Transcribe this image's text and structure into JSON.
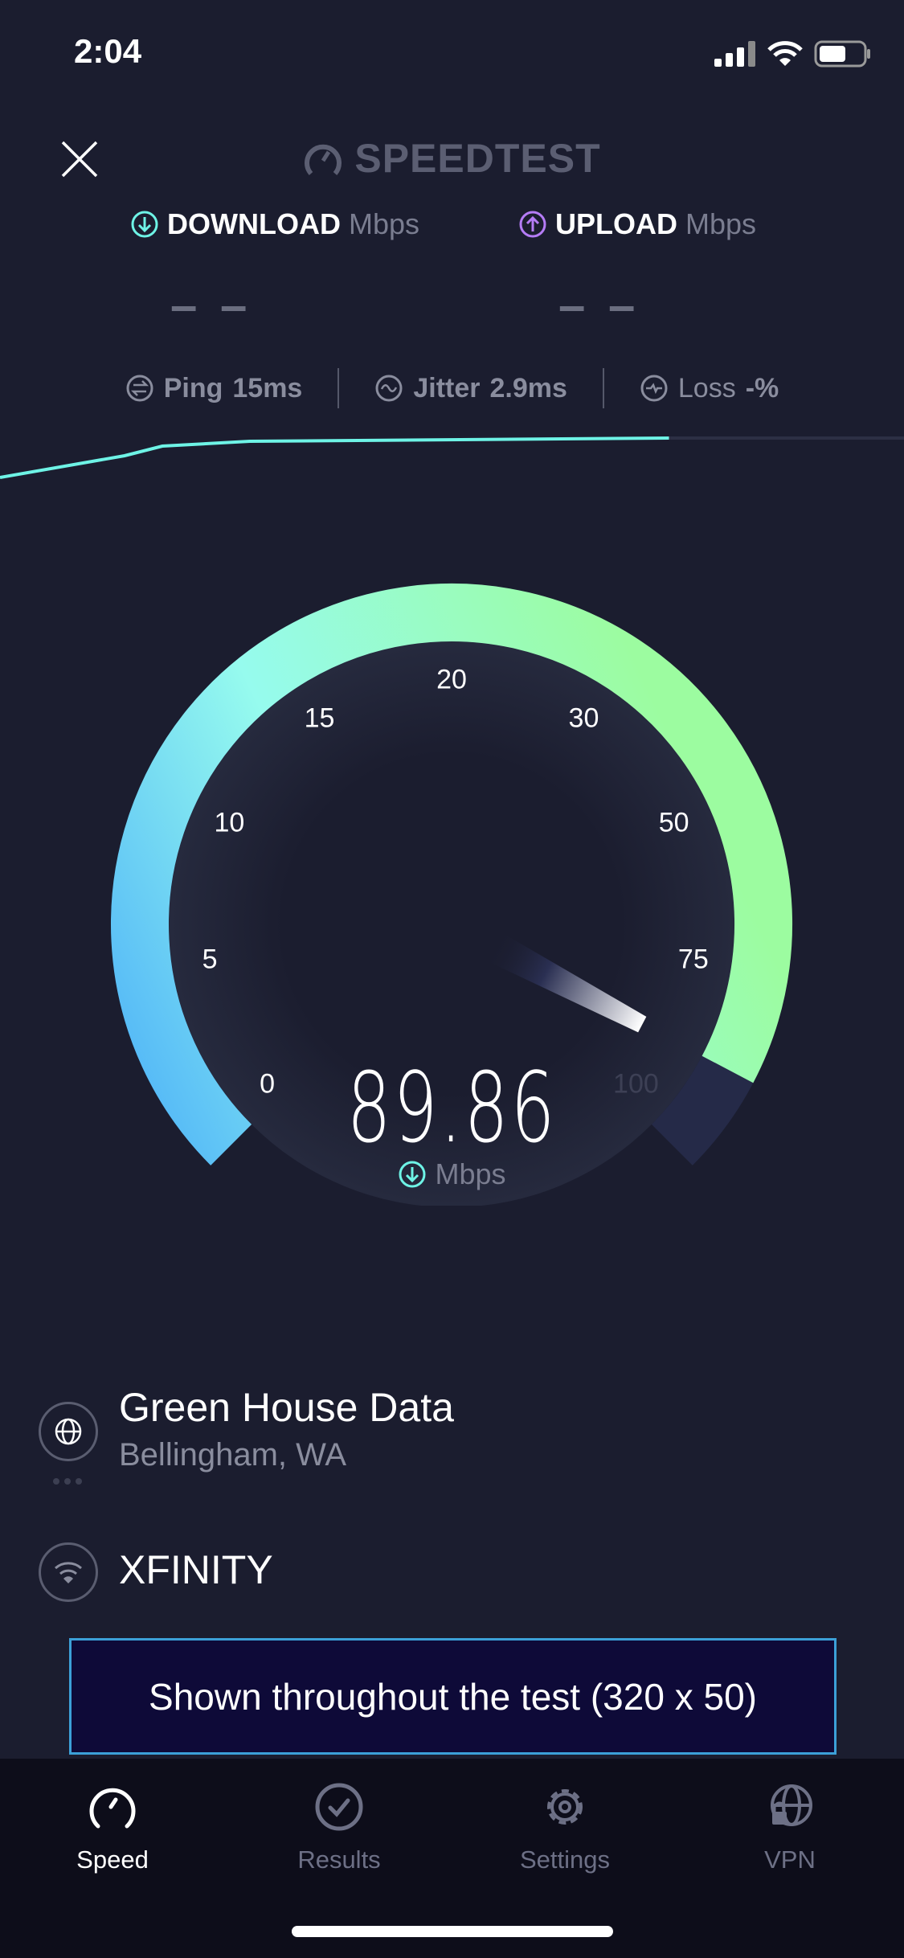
{
  "status_bar": {
    "time": "2:04"
  },
  "header": {
    "logo_text": "SPEEDTEST"
  },
  "download": {
    "label": "DOWNLOAD",
    "unit": "Mbps",
    "value": "– –",
    "accent": "#6ef3e6"
  },
  "upload": {
    "label": "UPLOAD",
    "unit": "Mbps",
    "value": "– –",
    "accent": "#b57cf6"
  },
  "metrics": [
    {
      "label": "Ping",
      "value": "15ms",
      "icon": "ping-icon"
    },
    {
      "label": "Jitter",
      "value": "2.9ms",
      "icon": "jitter-icon"
    },
    {
      "label": "Loss",
      "value": "-%",
      "icon": "loss-icon"
    }
  ],
  "test_progress": 0.74,
  "gauge": {
    "ticks": [
      "0",
      "5",
      "10",
      "15",
      "20",
      "30",
      "50",
      "75",
      "100"
    ],
    "value": 89.86,
    "value_text": "89.86",
    "unit": "Mbps",
    "colors": {
      "start": "#4fb3f8",
      "mid": "#96fbee",
      "end": "#9cfca0",
      "track": "#252a48"
    }
  },
  "server": {
    "name": "Green House Data",
    "location": "Bellingham, WA"
  },
  "network": {
    "name": "XFINITY"
  },
  "ad": {
    "text": "Shown throughout the test (320 x 50)"
  },
  "tabs": [
    {
      "label": "Speed",
      "icon": "speedometer-icon",
      "active": true
    },
    {
      "label": "Results",
      "icon": "check-circle-icon",
      "active": false
    },
    {
      "label": "Settings",
      "icon": "gear-icon",
      "active": false
    },
    {
      "label": "VPN",
      "icon": "vpn-globe-lock-icon",
      "active": false
    }
  ]
}
